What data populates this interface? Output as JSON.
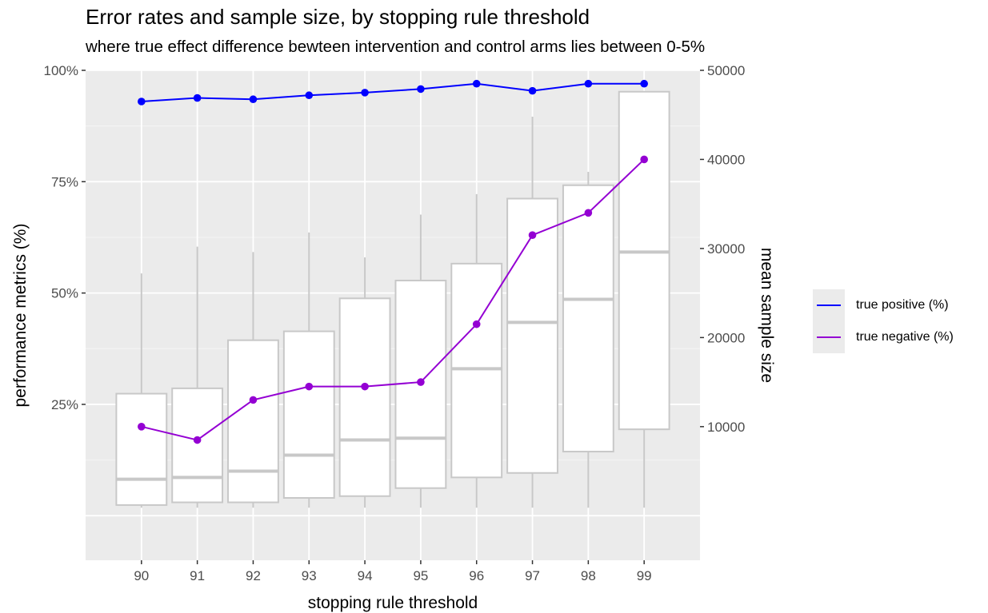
{
  "chart_data": {
    "type": "line",
    "title": "Error rates and sample size, by stopping rule threshold",
    "subtitle": "where true effect difference bewteen intervention and control arms lies between 0-5%",
    "xlabel": "stopping rule threshold",
    "ylabel": "performance metrics (%)",
    "y2label": "mean sample size",
    "categories": [
      "90",
      "91",
      "92",
      "93",
      "94",
      "95",
      "96",
      "97",
      "98",
      "99"
    ],
    "ylim": [
      -0.1,
      1.0
    ],
    "y2lim": [
      0,
      50000
    ],
    "yticks": [
      0.25,
      0.5,
      0.75,
      1.0
    ],
    "ytick_labels": [
      "25%",
      "50%",
      "75%",
      "100%"
    ],
    "y2ticks": [
      10000,
      20000,
      30000,
      40000,
      50000
    ],
    "y2tick_labels": [
      "10000",
      "20000",
      "30000",
      "40000",
      "50000"
    ],
    "grid": true,
    "legend_position": "right",
    "series": [
      {
        "name": "true positive (%)",
        "color": "#0000ff",
        "values": [
          0.93,
          0.938,
          0.935,
          0.944,
          0.95,
          0.958,
          0.97,
          0.954,
          0.97,
          0.97
        ]
      },
      {
        "name": "true negative (%)",
        "color": "#9400d3",
        "values": [
          0.2,
          0.17,
          0.26,
          0.29,
          0.29,
          0.3,
          0.43,
          0.63,
          0.68,
          0.8
        ]
      }
    ],
    "boxplot": {
      "axis": "secondary",
      "color": "#c8c8c8",
      "fill": "#ffffff",
      "whisker_low": [
        900,
        900,
        900,
        900,
        900,
        900,
        900,
        900,
        900,
        900
      ],
      "q1": [
        1200,
        1500,
        1500,
        2000,
        2200,
        3100,
        4300,
        4800,
        7200,
        9700
      ],
      "median": [
        4100,
        4300,
        5000,
        6800,
        8500,
        8700,
        16500,
        21700,
        24300,
        29600
      ],
      "q3": [
        13700,
        14300,
        19700,
        20700,
        24400,
        26400,
        28300,
        35600,
        37100,
        47600
      ],
      "whisker_high": [
        27200,
        30200,
        29600,
        31800,
        29000,
        33800,
        36100,
        44800,
        38600,
        47500
      ]
    }
  }
}
